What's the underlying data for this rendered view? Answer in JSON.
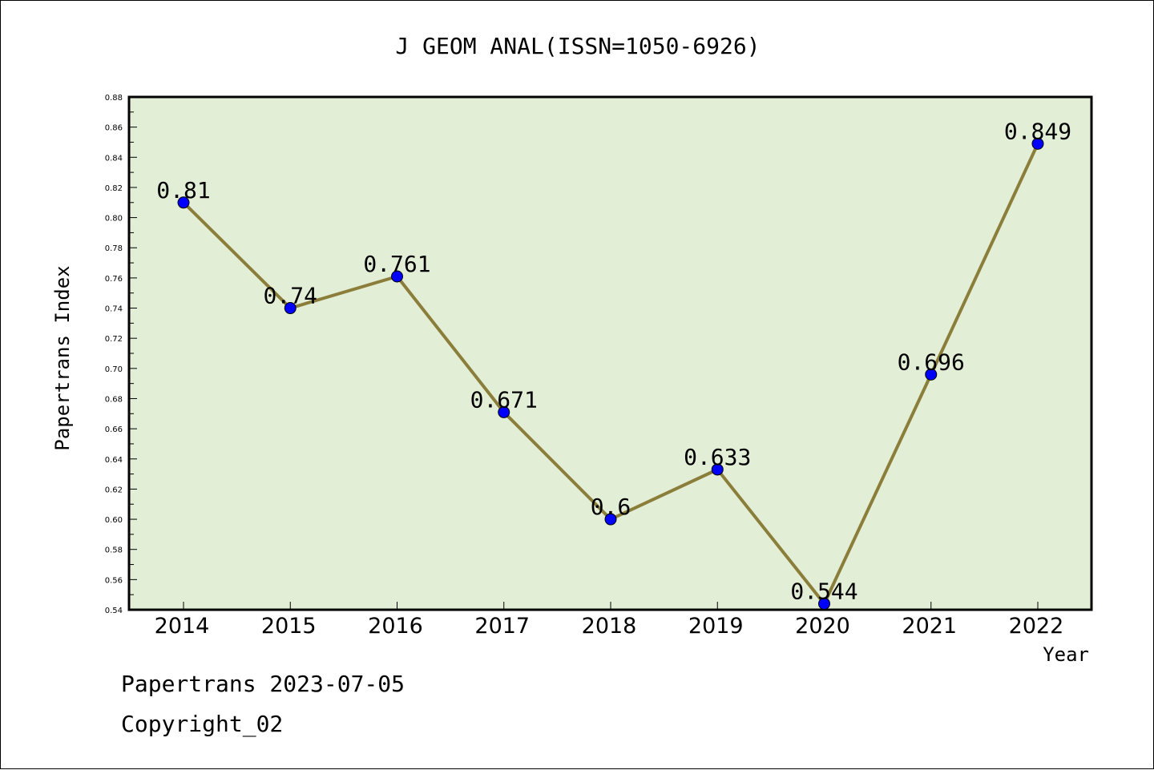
{
  "chart_data": {
    "type": "line",
    "title": "J GEOM ANAL(ISSN=1050-6926)",
    "xlabel": "Year",
    "ylabel": "Papertrans Index",
    "categories": [
      "2014",
      "2015",
      "2016",
      "2017",
      "2018",
      "2019",
      "2020",
      "2021",
      "2022"
    ],
    "series": [
      {
        "values": [
          0.81,
          0.74,
          0.761,
          0.671,
          0.6,
          0.633,
          0.544,
          0.696,
          0.849
        ],
        "labels": [
          "0.81",
          "0.74",
          "0.761",
          "0.671",
          "0.6",
          "0.633",
          "0.544",
          "0.696",
          "0.849"
        ]
      }
    ],
    "ylim": [
      0.54,
      0.88
    ],
    "yticks": [
      "0.54",
      "0.56",
      "0.58",
      "0.60",
      "0.62",
      "0.64",
      "0.66",
      "0.68",
      "0.70",
      "0.72",
      "0.74",
      "0.76",
      "0.78",
      "0.80",
      "0.82",
      "0.84",
      "0.86",
      "0.88"
    ],
    "grid": false,
    "colors": {
      "plot_background": "#e2efd6",
      "line": "#8b7d3a",
      "marker": "#0000ff"
    }
  },
  "footer": {
    "date_line": "Papertrans 2023-07-05",
    "copyright_line": "Copyright_02"
  }
}
